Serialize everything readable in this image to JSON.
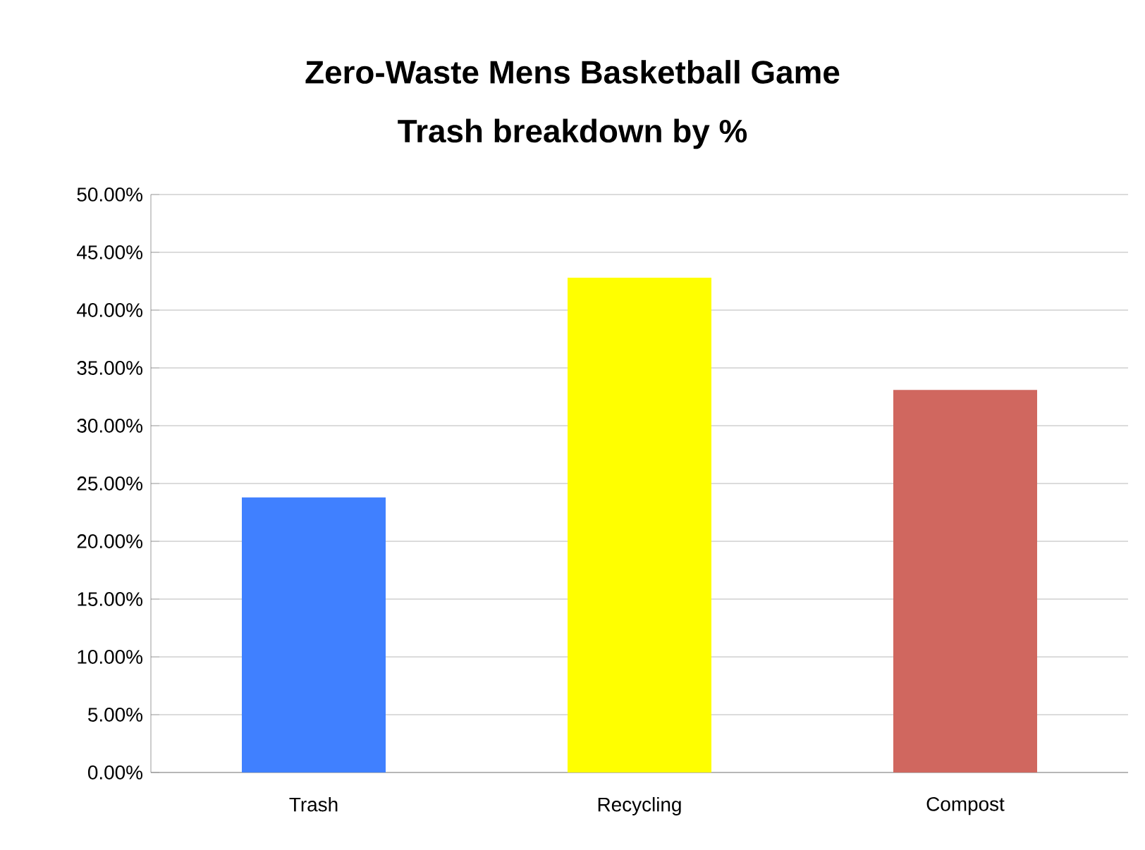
{
  "chart_data": {
    "type": "bar",
    "title": "Zero-Waste Mens Basketball Game",
    "subtitle": "Trash breakdown by %",
    "categories": [
      "Trash",
      "Recycling",
      "Compost"
    ],
    "values": [
      0.238,
      0.428,
      0.331
    ],
    "colors": [
      "#4080ff",
      "#ffff00",
      "#d0675f"
    ],
    "ylim": [
      0,
      0.5
    ],
    "yticks": [
      {
        "value": 0,
        "label": "0.00%"
      },
      {
        "value": 0.05,
        "label": "5.00%"
      },
      {
        "value": 0.1,
        "label": "10.00%"
      },
      {
        "value": 0.15,
        "label": "15.00%"
      },
      {
        "value": 0.2,
        "label": "20.00%"
      },
      {
        "value": 0.25,
        "label": "25.00%"
      },
      {
        "value": 0.3,
        "label": "30.00%"
      },
      {
        "value": 0.35,
        "label": "35.00%"
      },
      {
        "value": 0.4,
        "label": "40.00%"
      },
      {
        "value": 0.45,
        "label": "45.00%"
      },
      {
        "value": 0.5,
        "label": "50.00%"
      }
    ],
    "grid": "y"
  }
}
